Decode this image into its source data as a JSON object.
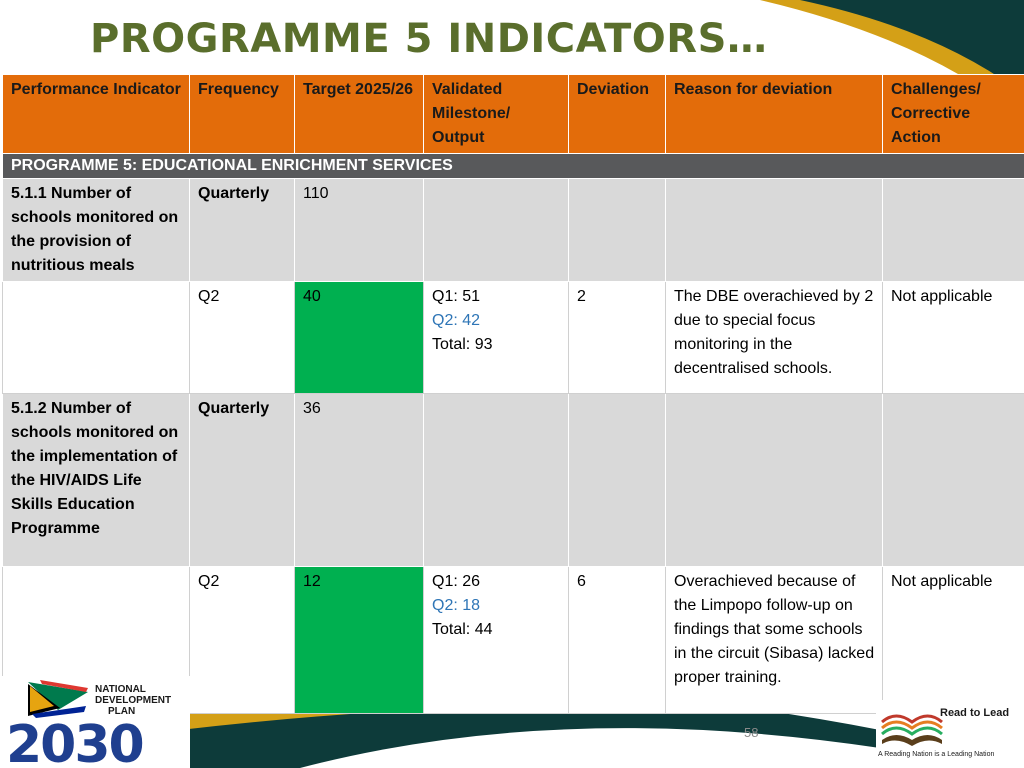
{
  "slide": {
    "title": "PROGRAMME 5 INDICATORS…",
    "page_number": "58"
  },
  "table": {
    "headers": [
      "Performance Indicator",
      "Frequency",
      "Target 2025/26",
      "Validated Milestone/ Output",
      "Deviation",
      "Reason for deviation",
      "Challenges/ Corrective Action"
    ],
    "section_title": "PROGRAMME 5: EDUCATIONAL ENRICHMENT SERVICES",
    "rows": [
      {
        "indicator": "5.1.1 Number of schools monitored on the provision of nutritious meals",
        "frequency": "Quarterly",
        "target": "110",
        "quarter": "Q2",
        "quarter_target": "40",
        "milestone_q1": "Q1: 51",
        "milestone_q2": "Q2: 42",
        "milestone_total": "Total: 93",
        "deviation": "2",
        "reason": "The DBE overachieved by 2 due to special focus monitoring in the decentralised schools.",
        "challenges": "Not applicable"
      },
      {
        "indicator": "5.1.2 Number of schools monitored on the implementation of the HIV/AIDS Life Skills Education Programme",
        "frequency": "Quarterly",
        "target": "36",
        "quarter": "Q2",
        "quarter_target": "12",
        "milestone_q1": "Q1: 26",
        "milestone_q2": "Q2: 18",
        "milestone_total": "Total: 44",
        "deviation": "6",
        "reason": "Overachieved because of the Limpopo follow-up on findings that some schools in the circuit (Sibasa) lacked proper training.",
        "challenges": "Not applicable"
      }
    ]
  },
  "logos": {
    "ndp": {
      "line1": "NATIONAL",
      "line2": "DEVELOPMENT",
      "line3": "PLAN",
      "year": "2030"
    },
    "read_to_lead": {
      "title": "Read to Lead",
      "tagline": "A Reading Nation is a Leading Nation"
    }
  },
  "colors": {
    "header": "#e36c0a",
    "section": "#58595b",
    "indicator_row": "#d9d9d9",
    "green_cell": "#00b050",
    "title": "#5a6e2c",
    "milestone_q2": "#2e75b6",
    "dark_teal": "#0d3b3a",
    "gold": "#d4a017"
  }
}
